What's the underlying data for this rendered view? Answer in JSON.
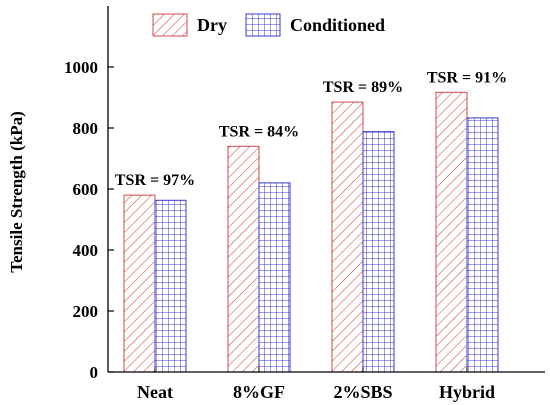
{
  "chart_data": {
    "type": "bar",
    "categories": [
      "Neat",
      "8%GF",
      "2%SBS",
      "Hybrid"
    ],
    "series": [
      {
        "name": "Dry",
        "values": [
          580,
          740,
          885,
          917
        ],
        "pattern": "diagonal-hatch",
        "color": "#cc4a4a"
      },
      {
        "name": "Conditioned",
        "values": [
          563,
          620,
          788,
          833
        ],
        "pattern": "grid",
        "color": "#3838c8"
      }
    ],
    "annotations": [
      "TSR = 97%",
      "TSR = 84%",
      "TSR = 89%",
      "TSR = 91%"
    ],
    "ylabel": "Tensile Strength (kPa)",
    "xlabel": "",
    "ylim": [
      0,
      1200
    ],
    "yticks": [
      0,
      200,
      400,
      600,
      800,
      1000
    ],
    "legend": "top",
    "grid": false
  }
}
